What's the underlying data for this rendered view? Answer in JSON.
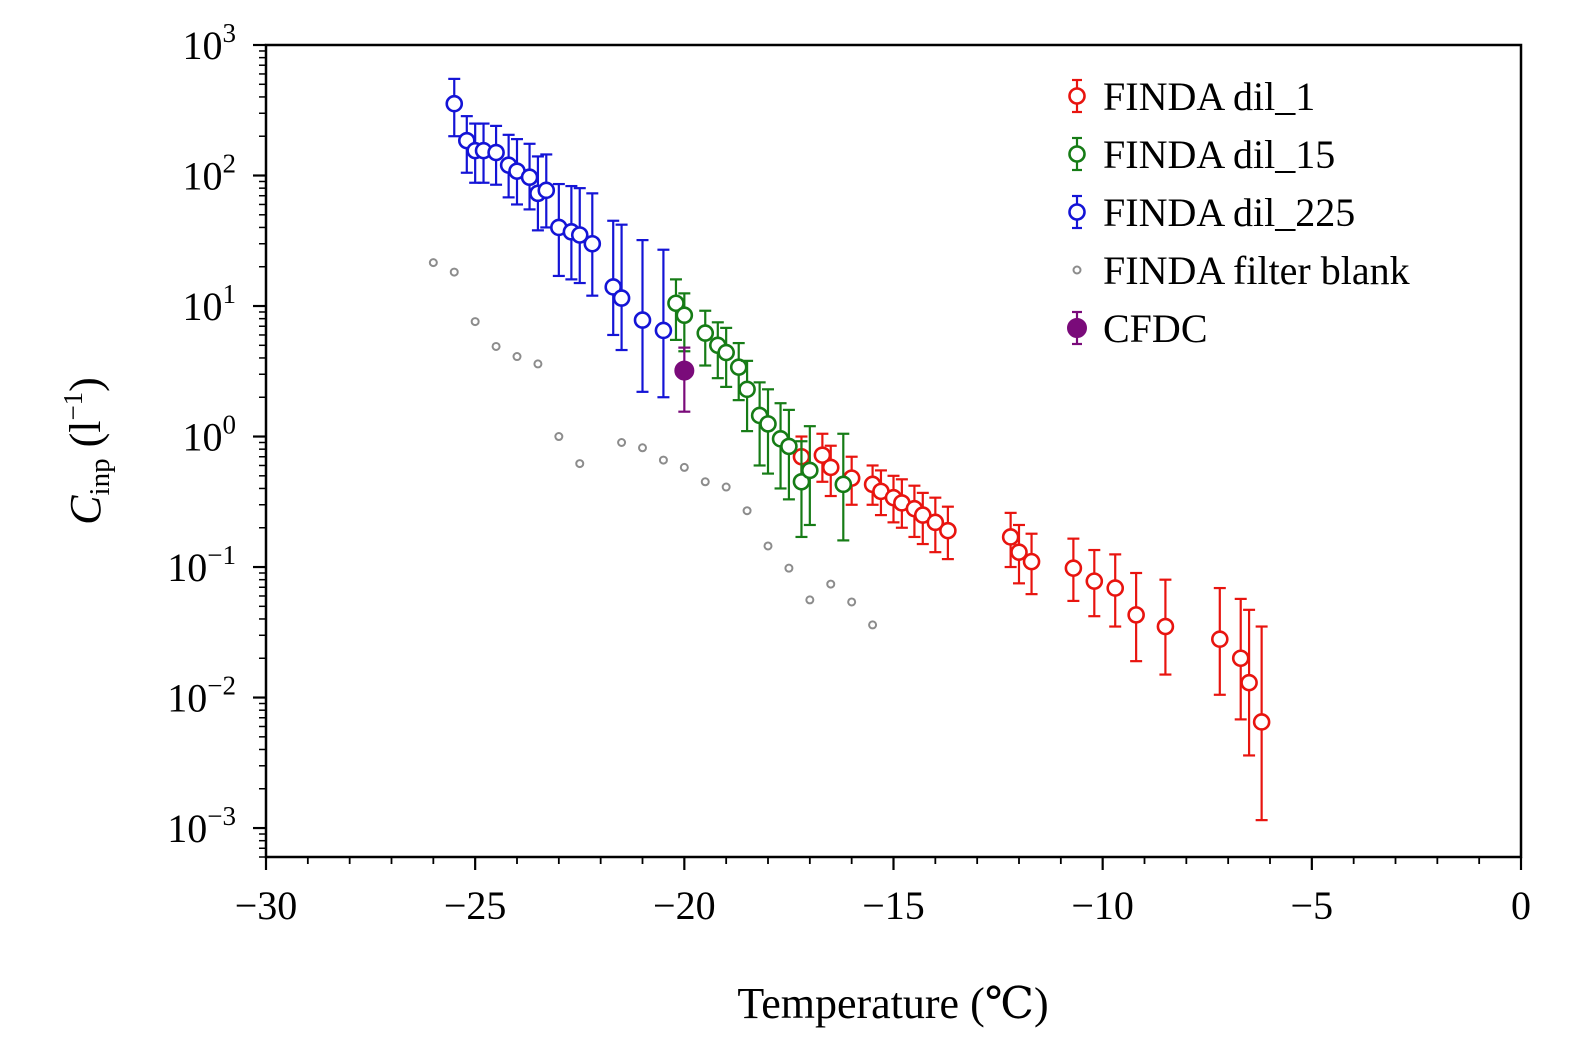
{
  "chart_data": {
    "type": "scatter",
    "title": "",
    "xlabel": "Temperature (℃)",
    "ylabel": {
      "symbol": "C",
      "subscript": "inp",
      "unit_open": " (l",
      "unit_sup": "−1",
      "unit_close": ")"
    },
    "xlim": [
      -30,
      0
    ],
    "ylim": [
      0.0006,
      1000
    ],
    "yscale": "log",
    "x_ticks": [
      -30,
      -25,
      -20,
      -15,
      -10,
      -5,
      0
    ],
    "x_tick_labels": [
      "−30",
      "−25",
      "−20",
      "−15",
      "−10",
      "−5",
      "0"
    ],
    "y_ticks": [
      {
        "value": 1000,
        "base": "10",
        "exp": "3"
      },
      {
        "value": 100,
        "base": "10",
        "exp": "2"
      },
      {
        "value": 10,
        "base": "10",
        "exp": "1"
      },
      {
        "value": 1,
        "base": "10",
        "exp": "0"
      },
      {
        "value": 0.1,
        "base": "10",
        "exp": "−1"
      },
      {
        "value": 0.01,
        "base": "10",
        "exp": "−2"
      },
      {
        "value": 0.001,
        "base": "10",
        "exp": "−3"
      }
    ],
    "legend_position": "top-right",
    "series": [
      {
        "name": "FINDA dil_1",
        "color": "#e8140f",
        "marker": "open-circle",
        "points": [
          {
            "x": -17.2,
            "y": 0.7,
            "lo": 0.45,
            "hi": 1.0
          },
          {
            "x": -16.7,
            "y": 0.72,
            "lo": 0.45,
            "hi": 1.05
          },
          {
            "x": -16.5,
            "y": 0.58,
            "lo": 0.35,
            "hi": 0.85
          },
          {
            "x": -16.0,
            "y": 0.48,
            "lo": 0.3,
            "hi": 0.7
          },
          {
            "x": -15.5,
            "y": 0.43,
            "lo": 0.3,
            "hi": 0.6
          },
          {
            "x": -15.3,
            "y": 0.38,
            "lo": 0.25,
            "hi": 0.55
          },
          {
            "x": -15.0,
            "y": 0.34,
            "lo": 0.22,
            "hi": 0.5
          },
          {
            "x": -14.8,
            "y": 0.31,
            "lo": 0.2,
            "hi": 0.47
          },
          {
            "x": -14.5,
            "y": 0.28,
            "lo": 0.17,
            "hi": 0.42
          },
          {
            "x": -14.3,
            "y": 0.25,
            "lo": 0.15,
            "hi": 0.37
          },
          {
            "x": -14.0,
            "y": 0.22,
            "lo": 0.13,
            "hi": 0.34
          },
          {
            "x": -13.7,
            "y": 0.19,
            "lo": 0.115,
            "hi": 0.29
          },
          {
            "x": -12.2,
            "y": 0.17,
            "lo": 0.1,
            "hi": 0.26
          },
          {
            "x": -12.0,
            "y": 0.13,
            "lo": 0.075,
            "hi": 0.21
          },
          {
            "x": -11.7,
            "y": 0.11,
            "lo": 0.062,
            "hi": 0.18
          },
          {
            "x": -10.7,
            "y": 0.098,
            "lo": 0.055,
            "hi": 0.165
          },
          {
            "x": -10.2,
            "y": 0.078,
            "lo": 0.042,
            "hi": 0.135
          },
          {
            "x": -9.7,
            "y": 0.069,
            "lo": 0.035,
            "hi": 0.125
          },
          {
            "x": -9.2,
            "y": 0.043,
            "lo": 0.019,
            "hi": 0.09
          },
          {
            "x": -8.5,
            "y": 0.035,
            "lo": 0.015,
            "hi": 0.08
          },
          {
            "x": -7.2,
            "y": 0.028,
            "lo": 0.0105,
            "hi": 0.069
          },
          {
            "x": -6.7,
            "y": 0.02,
            "lo": 0.0068,
            "hi": 0.057
          },
          {
            "x": -6.5,
            "y": 0.013,
            "lo": 0.0036,
            "hi": 0.047
          },
          {
            "x": -6.2,
            "y": 0.0065,
            "lo": 0.00115,
            "hi": 0.035
          }
        ]
      },
      {
        "name": "FINDA dil_15",
        "color": "#167c16",
        "marker": "open-circle",
        "points": [
          {
            "x": -20.2,
            "y": 10.5,
            "lo": 5.5,
            "hi": 16.0
          },
          {
            "x": -20.0,
            "y": 8.5,
            "lo": 4.5,
            "hi": 12.5
          },
          {
            "x": -19.5,
            "y": 6.2,
            "lo": 3.5,
            "hi": 9.2
          },
          {
            "x": -19.2,
            "y": 5.0,
            "lo": 2.8,
            "hi": 7.5
          },
          {
            "x": -19.0,
            "y": 4.4,
            "lo": 2.4,
            "hi": 6.8
          },
          {
            "x": -18.7,
            "y": 3.4,
            "lo": 1.9,
            "hi": 5.2
          },
          {
            "x": -18.5,
            "y": 2.3,
            "lo": 1.1,
            "hi": 3.8
          },
          {
            "x": -18.2,
            "y": 1.45,
            "lo": 0.6,
            "hi": 2.6
          },
          {
            "x": -18.0,
            "y": 1.25,
            "lo": 0.52,
            "hi": 2.3
          },
          {
            "x": -17.7,
            "y": 0.96,
            "lo": 0.4,
            "hi": 1.8
          },
          {
            "x": -17.5,
            "y": 0.84,
            "lo": 0.33,
            "hi": 1.6
          },
          {
            "x": -17.2,
            "y": 0.45,
            "lo": 0.17,
            "hi": 0.92
          },
          {
            "x": -17.0,
            "y": 0.55,
            "lo": 0.21,
            "hi": 1.2
          },
          {
            "x": -16.2,
            "y": 0.43,
            "lo": 0.16,
            "hi": 1.05
          }
        ]
      },
      {
        "name": "FINDA dil_225",
        "color": "#1414d6",
        "marker": "open-circle",
        "points": [
          {
            "x": -25.5,
            "y": 355,
            "lo": 200,
            "hi": 550
          },
          {
            "x": -25.2,
            "y": 185,
            "lo": 105,
            "hi": 285
          },
          {
            "x": -25.0,
            "y": 155,
            "lo": 88,
            "hi": 250
          },
          {
            "x": -24.8,
            "y": 155,
            "lo": 88,
            "hi": 250
          },
          {
            "x": -24.5,
            "y": 150,
            "lo": 85,
            "hi": 240
          },
          {
            "x": -24.2,
            "y": 120,
            "lo": 68,
            "hi": 205
          },
          {
            "x": -24.0,
            "y": 108,
            "lo": 60,
            "hi": 190
          },
          {
            "x": -23.7,
            "y": 97,
            "lo": 55,
            "hi": 175
          },
          {
            "x": -23.5,
            "y": 73,
            "lo": 38,
            "hi": 140
          },
          {
            "x": -23.3,
            "y": 77,
            "lo": 40,
            "hi": 145
          },
          {
            "x": -23.0,
            "y": 40,
            "lo": 17,
            "hi": 86
          },
          {
            "x": -22.7,
            "y": 37,
            "lo": 16,
            "hi": 83
          },
          {
            "x": -22.5,
            "y": 35,
            "lo": 15,
            "hi": 80
          },
          {
            "x": -22.2,
            "y": 30,
            "lo": 12,
            "hi": 73
          },
          {
            "x": -21.7,
            "y": 14,
            "lo": 6,
            "hi": 45
          },
          {
            "x": -21.5,
            "y": 11.5,
            "lo": 4.6,
            "hi": 42
          },
          {
            "x": -21.0,
            "y": 7.8,
            "lo": 2.2,
            "hi": 32
          },
          {
            "x": -20.5,
            "y": 6.5,
            "lo": 2.0,
            "hi": 27
          }
        ]
      },
      {
        "name": "FINDA filter blank",
        "color": "#8c8c8c",
        "marker": "small-open-circle",
        "points": [
          {
            "x": -26.0,
            "y": 21.5
          },
          {
            "x": -25.5,
            "y": 18.2
          },
          {
            "x": -25.0,
            "y": 7.6
          },
          {
            "x": -24.5,
            "y": 4.9
          },
          {
            "x": -24.0,
            "y": 4.1
          },
          {
            "x": -23.5,
            "y": 3.6
          },
          {
            "x": -23.0,
            "y": 1.0
          },
          {
            "x": -22.5,
            "y": 0.62
          },
          {
            "x": -21.5,
            "y": 0.9
          },
          {
            "x": -21.0,
            "y": 0.82
          },
          {
            "x": -20.5,
            "y": 0.66
          },
          {
            "x": -20.0,
            "y": 0.58
          },
          {
            "x": -19.5,
            "y": 0.45
          },
          {
            "x": -19.0,
            "y": 0.41
          },
          {
            "x": -18.5,
            "y": 0.27
          },
          {
            "x": -18.0,
            "y": 0.145
          },
          {
            "x": -17.5,
            "y": 0.098
          },
          {
            "x": -17.0,
            "y": 0.056
          },
          {
            "x": -16.5,
            "y": 0.074
          },
          {
            "x": -16.0,
            "y": 0.054
          },
          {
            "x": -15.5,
            "y": 0.036
          }
        ]
      },
      {
        "name": "CFDC",
        "color": "#7a0b7a",
        "marker": "filled-circle",
        "points": [
          {
            "x": -20.0,
            "y": 3.2,
            "lo": 1.55,
            "hi": 4.8
          }
        ]
      }
    ]
  }
}
